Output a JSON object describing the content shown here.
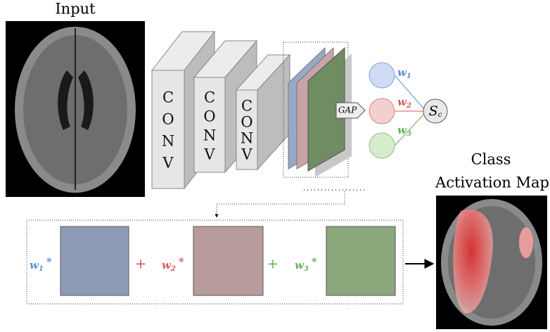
{
  "input_label": "Input",
  "conv_blocks": [
    {
      "letters": [
        "C",
        "O",
        "N",
        "V"
      ]
    },
    {
      "letters": [
        "C",
        "O",
        "N",
        "V"
      ]
    },
    {
      "letters": [
        "C",
        "O",
        "N",
        "V"
      ]
    }
  ],
  "gap_label": "GAP",
  "weights": [
    {
      "symbol": "w",
      "subscript": "1"
    },
    {
      "symbol": "w",
      "subscript": "2"
    },
    {
      "symbol": "w",
      "subscript": "3"
    }
  ],
  "score": {
    "symbol": "S",
    "subscript": "c"
  },
  "output_label": [
    "Class",
    "Activation Map"
  ],
  "sum": {
    "multiplier": "*",
    "operators": [
      "+",
      "+"
    ]
  }
}
